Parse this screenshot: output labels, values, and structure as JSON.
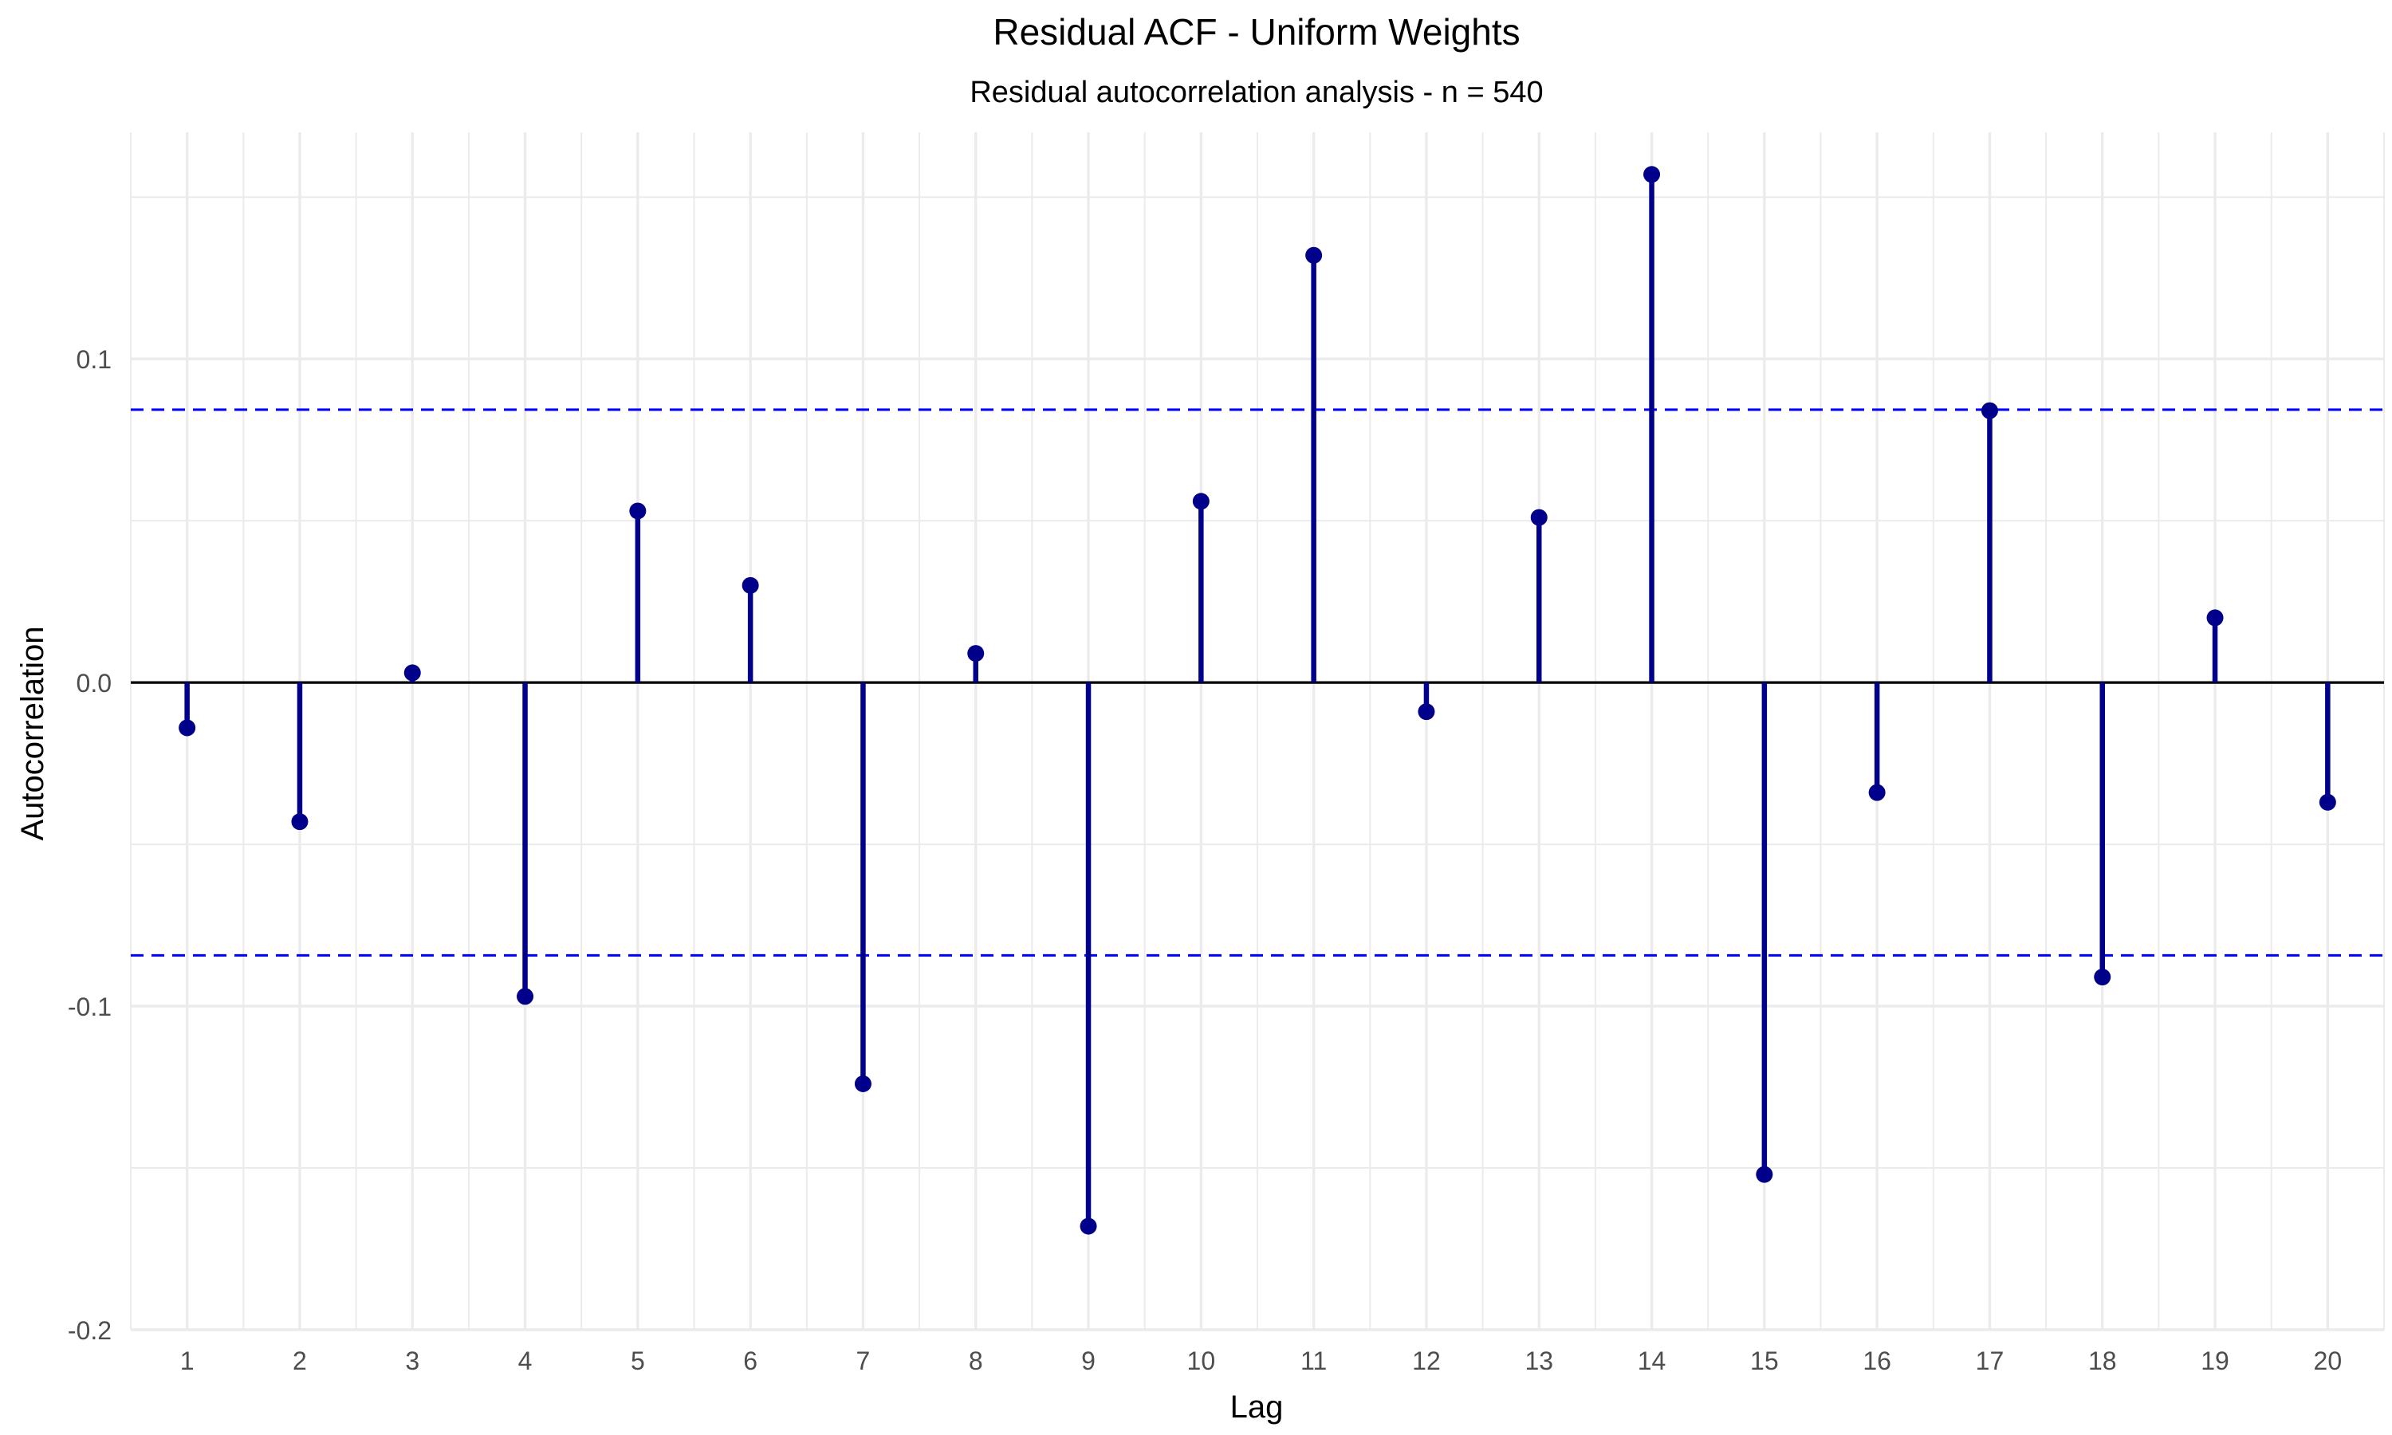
{
  "chart_data": {
    "type": "bar",
    "subtype": "acf-stem",
    "title": "Residual ACF - Uniform Weights",
    "subtitle": "Residual autocorrelation analysis - n = 540",
    "xlabel": "Lag",
    "ylabel": "Autocorrelation",
    "categories": [
      "1",
      "2",
      "3",
      "4",
      "5",
      "6",
      "7",
      "8",
      "9",
      "10",
      "11",
      "12",
      "13",
      "14",
      "15",
      "16",
      "17",
      "18",
      "19",
      "20"
    ],
    "values": [
      -0.014,
      -0.043,
      0.003,
      -0.097,
      0.053,
      0.03,
      -0.124,
      0.009,
      -0.168,
      0.056,
      0.132,
      -0.009,
      0.051,
      0.157,
      -0.152,
      -0.034,
      0.084,
      -0.091,
      0.02,
      -0.037
    ],
    "ylim": [
      -0.2,
      0.17
    ],
    "xlim": [
      0.5,
      20.5
    ],
    "yticks": [
      -0.2,
      -0.1,
      0.0,
      0.1
    ],
    "ytick_labels": [
      "-0.2",
      "-0.1",
      "0.0",
      "0.1"
    ],
    "confidence_bounds": [
      0.0843,
      -0.0843
    ],
    "zero_line": 0,
    "grid": true,
    "legend": "none",
    "colors": {
      "stem": "#00008B",
      "point": "#00008B",
      "confidence_line": "#0000FF",
      "zero_line": "#000000",
      "grid": "#EBEBEB"
    }
  }
}
